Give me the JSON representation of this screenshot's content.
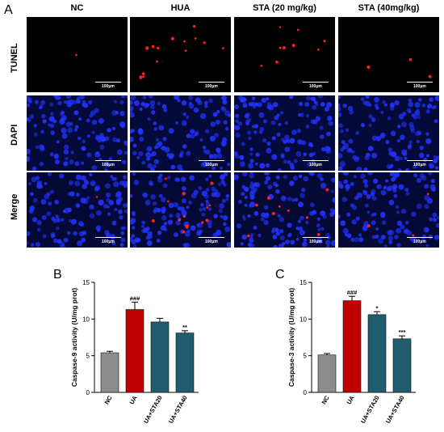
{
  "figure": {
    "panel_a_letter": "A",
    "panel_b_letter": "B",
    "panel_c_letter": "C",
    "column_headers": [
      "NC",
      "HUA",
      "STA (20 mg/kg)",
      "STA (40mg/kg)"
    ],
    "row_labels": [
      "TUNEL",
      "DAPI",
      "Merge"
    ],
    "scale_bar_label": "100μm"
  },
  "colors": {
    "NC": "#8c8c8c",
    "UA": "#c00000",
    "UA+STA20": "#1f5c6e",
    "UA+STA40": "#1f5c6e",
    "tunel_signal": "#ff2020",
    "dapi_nuclei": "#2233ff"
  },
  "chart_data": [
    {
      "type": "bar",
      "panel": "B",
      "ylabel": "Caspase-9 activity (U/mg prot)",
      "categories": [
        "NC",
        "UA",
        "UA+STA20",
        "UA+STA40"
      ],
      "values": [
        5.4,
        11.3,
        9.6,
        8.1
      ],
      "errors": [
        0.2,
        1.0,
        0.5,
        0.3
      ],
      "annotations": [
        "",
        "###",
        "",
        "**"
      ],
      "ylim": [
        0,
        15
      ],
      "yticks": [
        0,
        5,
        10,
        15
      ]
    },
    {
      "type": "bar",
      "panel": "C",
      "ylabel": "Caspase-3 activity (U/mg prot)",
      "categories": [
        "NC",
        "UA",
        "UA+STA20",
        "UA+STA40"
      ],
      "values": [
        5.1,
        12.5,
        10.6,
        7.3
      ],
      "errors": [
        0.2,
        0.6,
        0.4,
        0.4
      ],
      "annotations": [
        "",
        "###",
        "*",
        "***"
      ],
      "ylim": [
        0,
        15
      ],
      "yticks": [
        0,
        5,
        10,
        15
      ]
    }
  ]
}
